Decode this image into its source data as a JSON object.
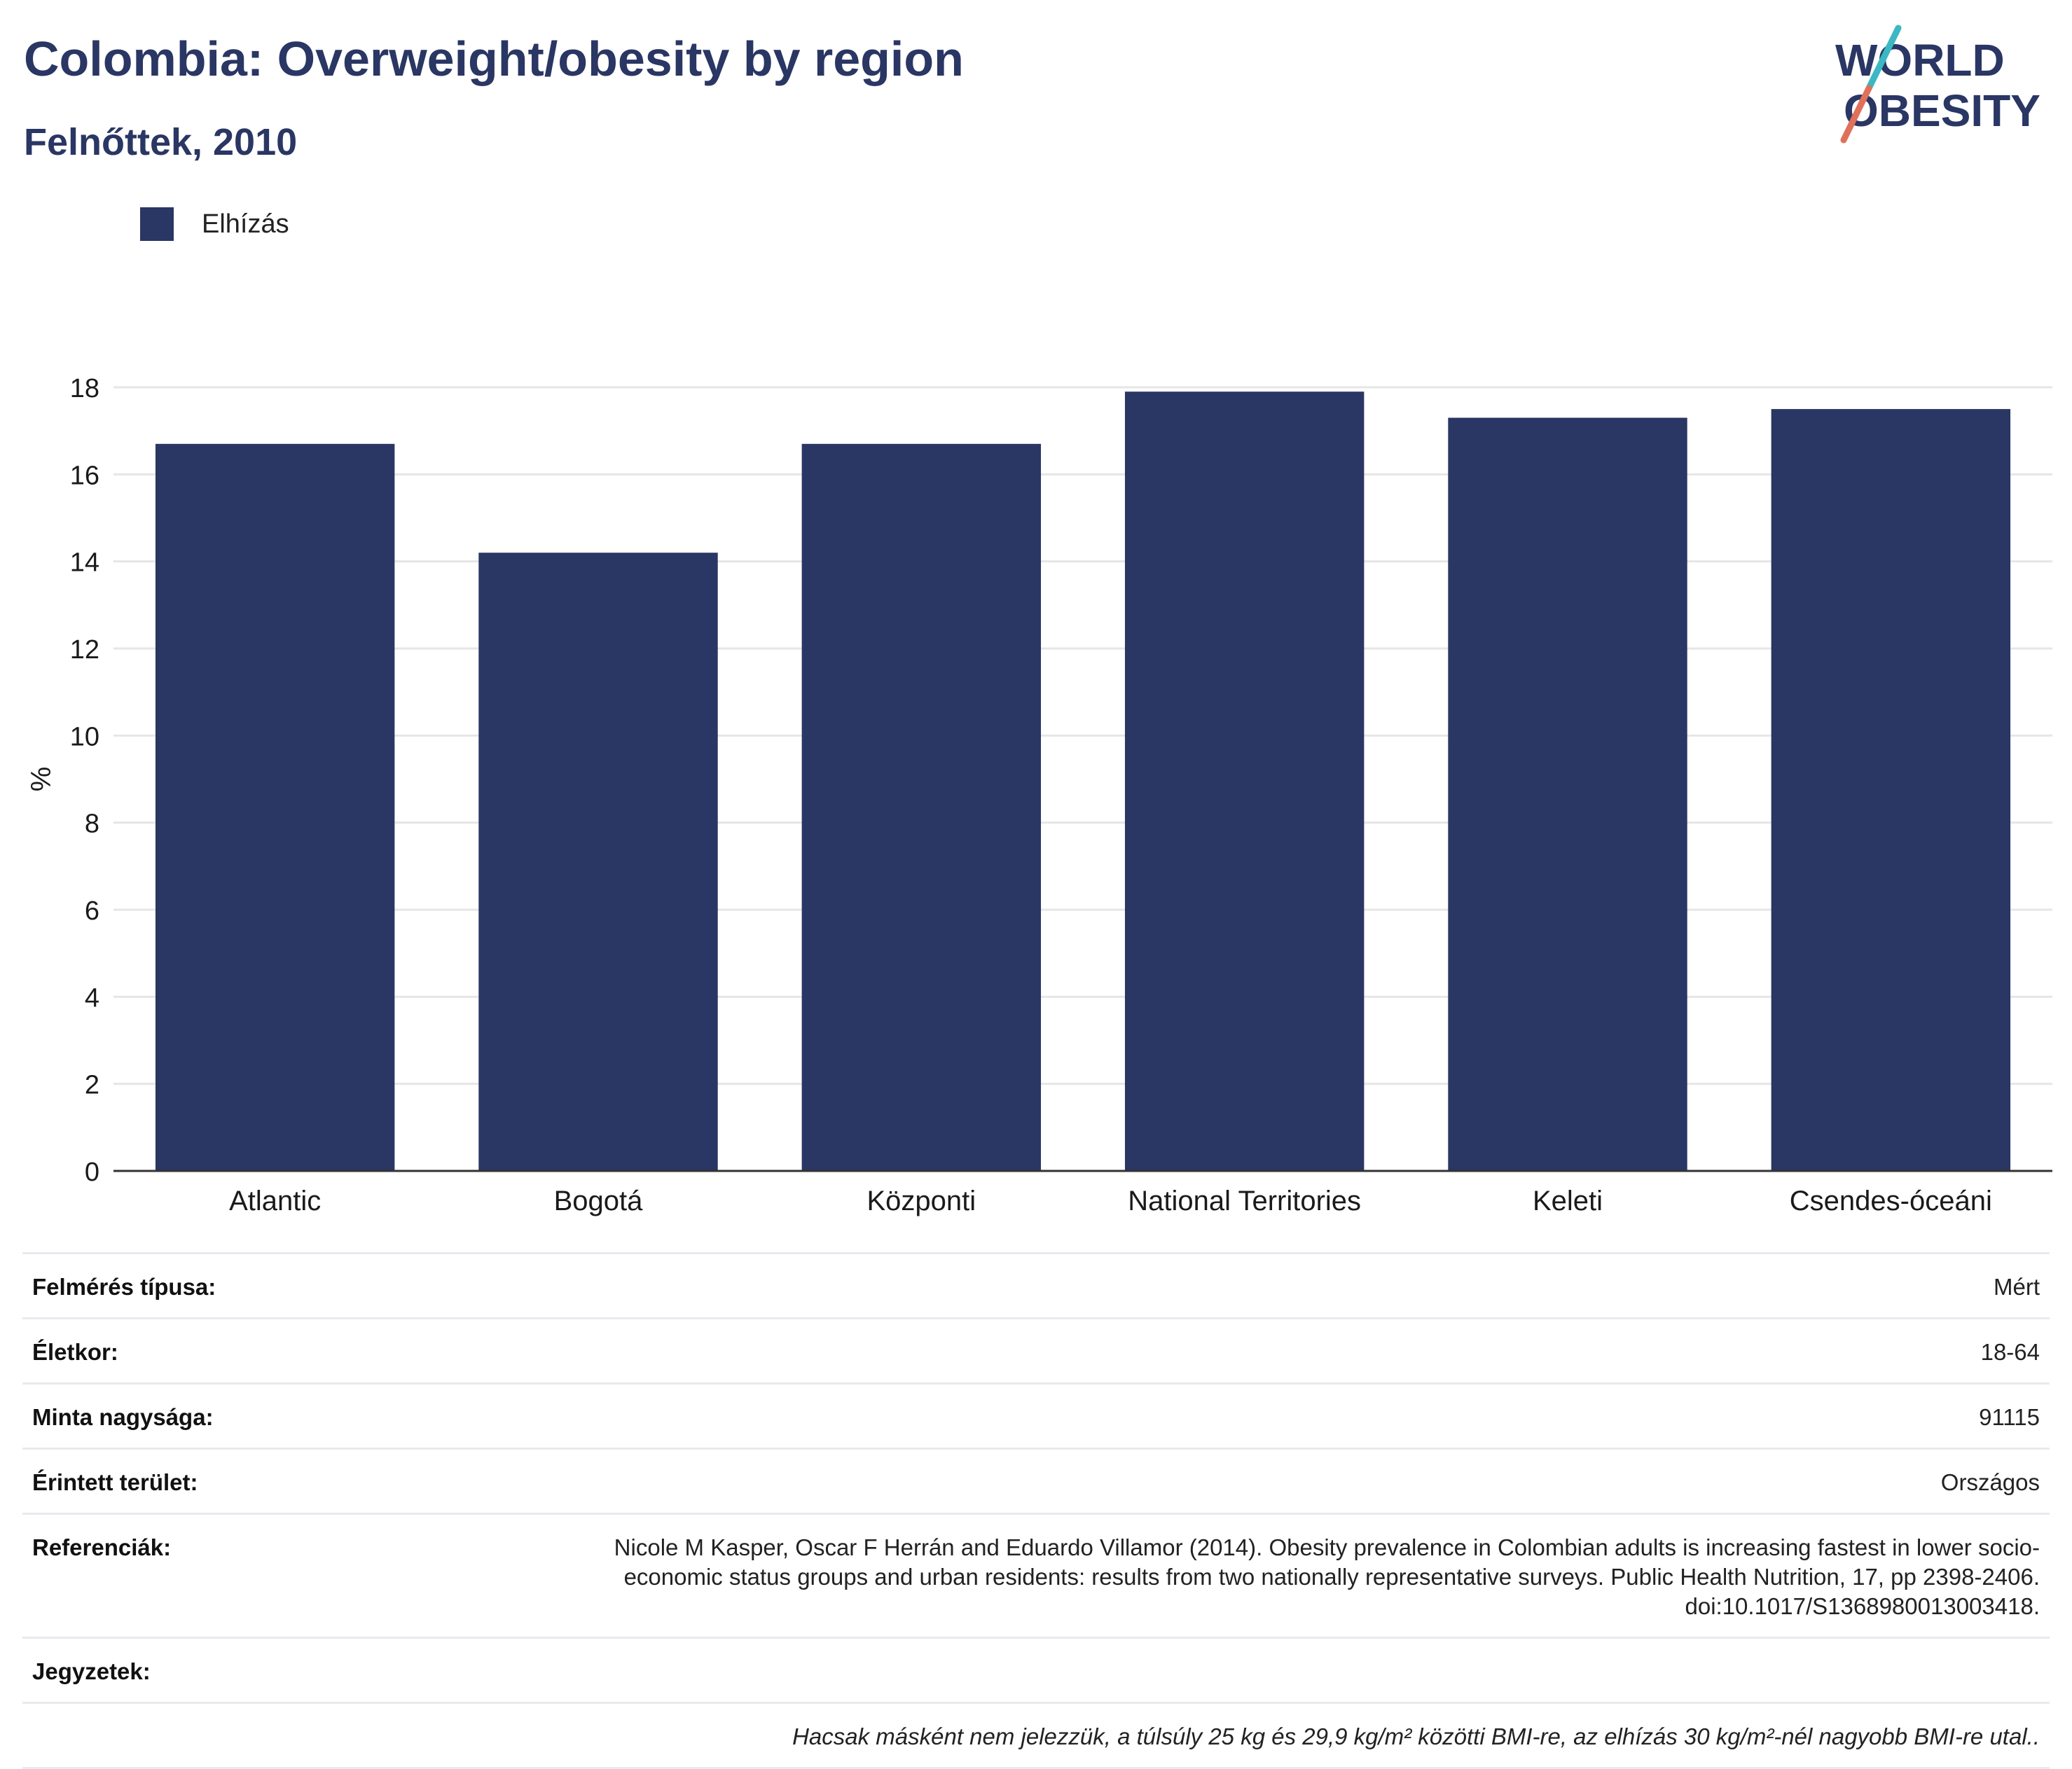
{
  "header": {
    "title": "Colombia: Overweight/obesity by region",
    "subtitle": "Felnőttek, 2010"
  },
  "logo": {
    "line1": "WORLD",
    "line2": "OBESITY",
    "accent_teal": "#3bb8c3",
    "accent_coral": "#e0705a",
    "text_color": "#2a3663"
  },
  "colors": {
    "bar": "#2a3663",
    "grid": "#e6e6e6",
    "axis": "#333333",
    "text": "#1a1a1a"
  },
  "chart_data": {
    "type": "bar",
    "categories": [
      "Atlantic",
      "Bogotá",
      "Központi",
      "National Territories",
      "Keleti",
      "Csendes-óceáni"
    ],
    "series": [
      {
        "name": "Elhízás",
        "values": [
          16.7,
          14.2,
          16.7,
          17.9,
          17.3,
          17.5
        ]
      }
    ],
    "ylabel": "%",
    "ylim": [
      0,
      18
    ],
    "yticks": [
      0,
      2,
      4,
      6,
      8,
      10,
      12,
      14,
      16,
      18
    ],
    "grid": true,
    "legend_position": "top-left"
  },
  "info": {
    "survey_type": {
      "label": "Felmérés típusa:",
      "value": "Mért"
    },
    "age": {
      "label": "Életkor:",
      "value": "18-64"
    },
    "sample_size": {
      "label": "Minta nagysága:",
      "value": "91115"
    },
    "area": {
      "label": "Érintett terület:",
      "value": "Országos"
    },
    "references": {
      "label": "Referenciák:",
      "value": "Nicole M Kasper, Oscar F Herrán and Eduardo Villamor (2014). Obesity prevalence in Colombian adults is increasing fastest in lower socio-economic status groups and urban residents: results from two nationally representative surveys. Public Health Nutrition, 17, pp 2398-2406. doi:10.1017/S1368980013003418."
    },
    "notes": {
      "label": "Jegyzetek:",
      "value": ""
    },
    "footnote": "Hacsak másként nem jelezzük, a túlsúly 25 kg és 29,9 kg/m² közötti BMI-re, az elhízás 30 kg/m²-nél nagyobb BMI-re utal.."
  }
}
